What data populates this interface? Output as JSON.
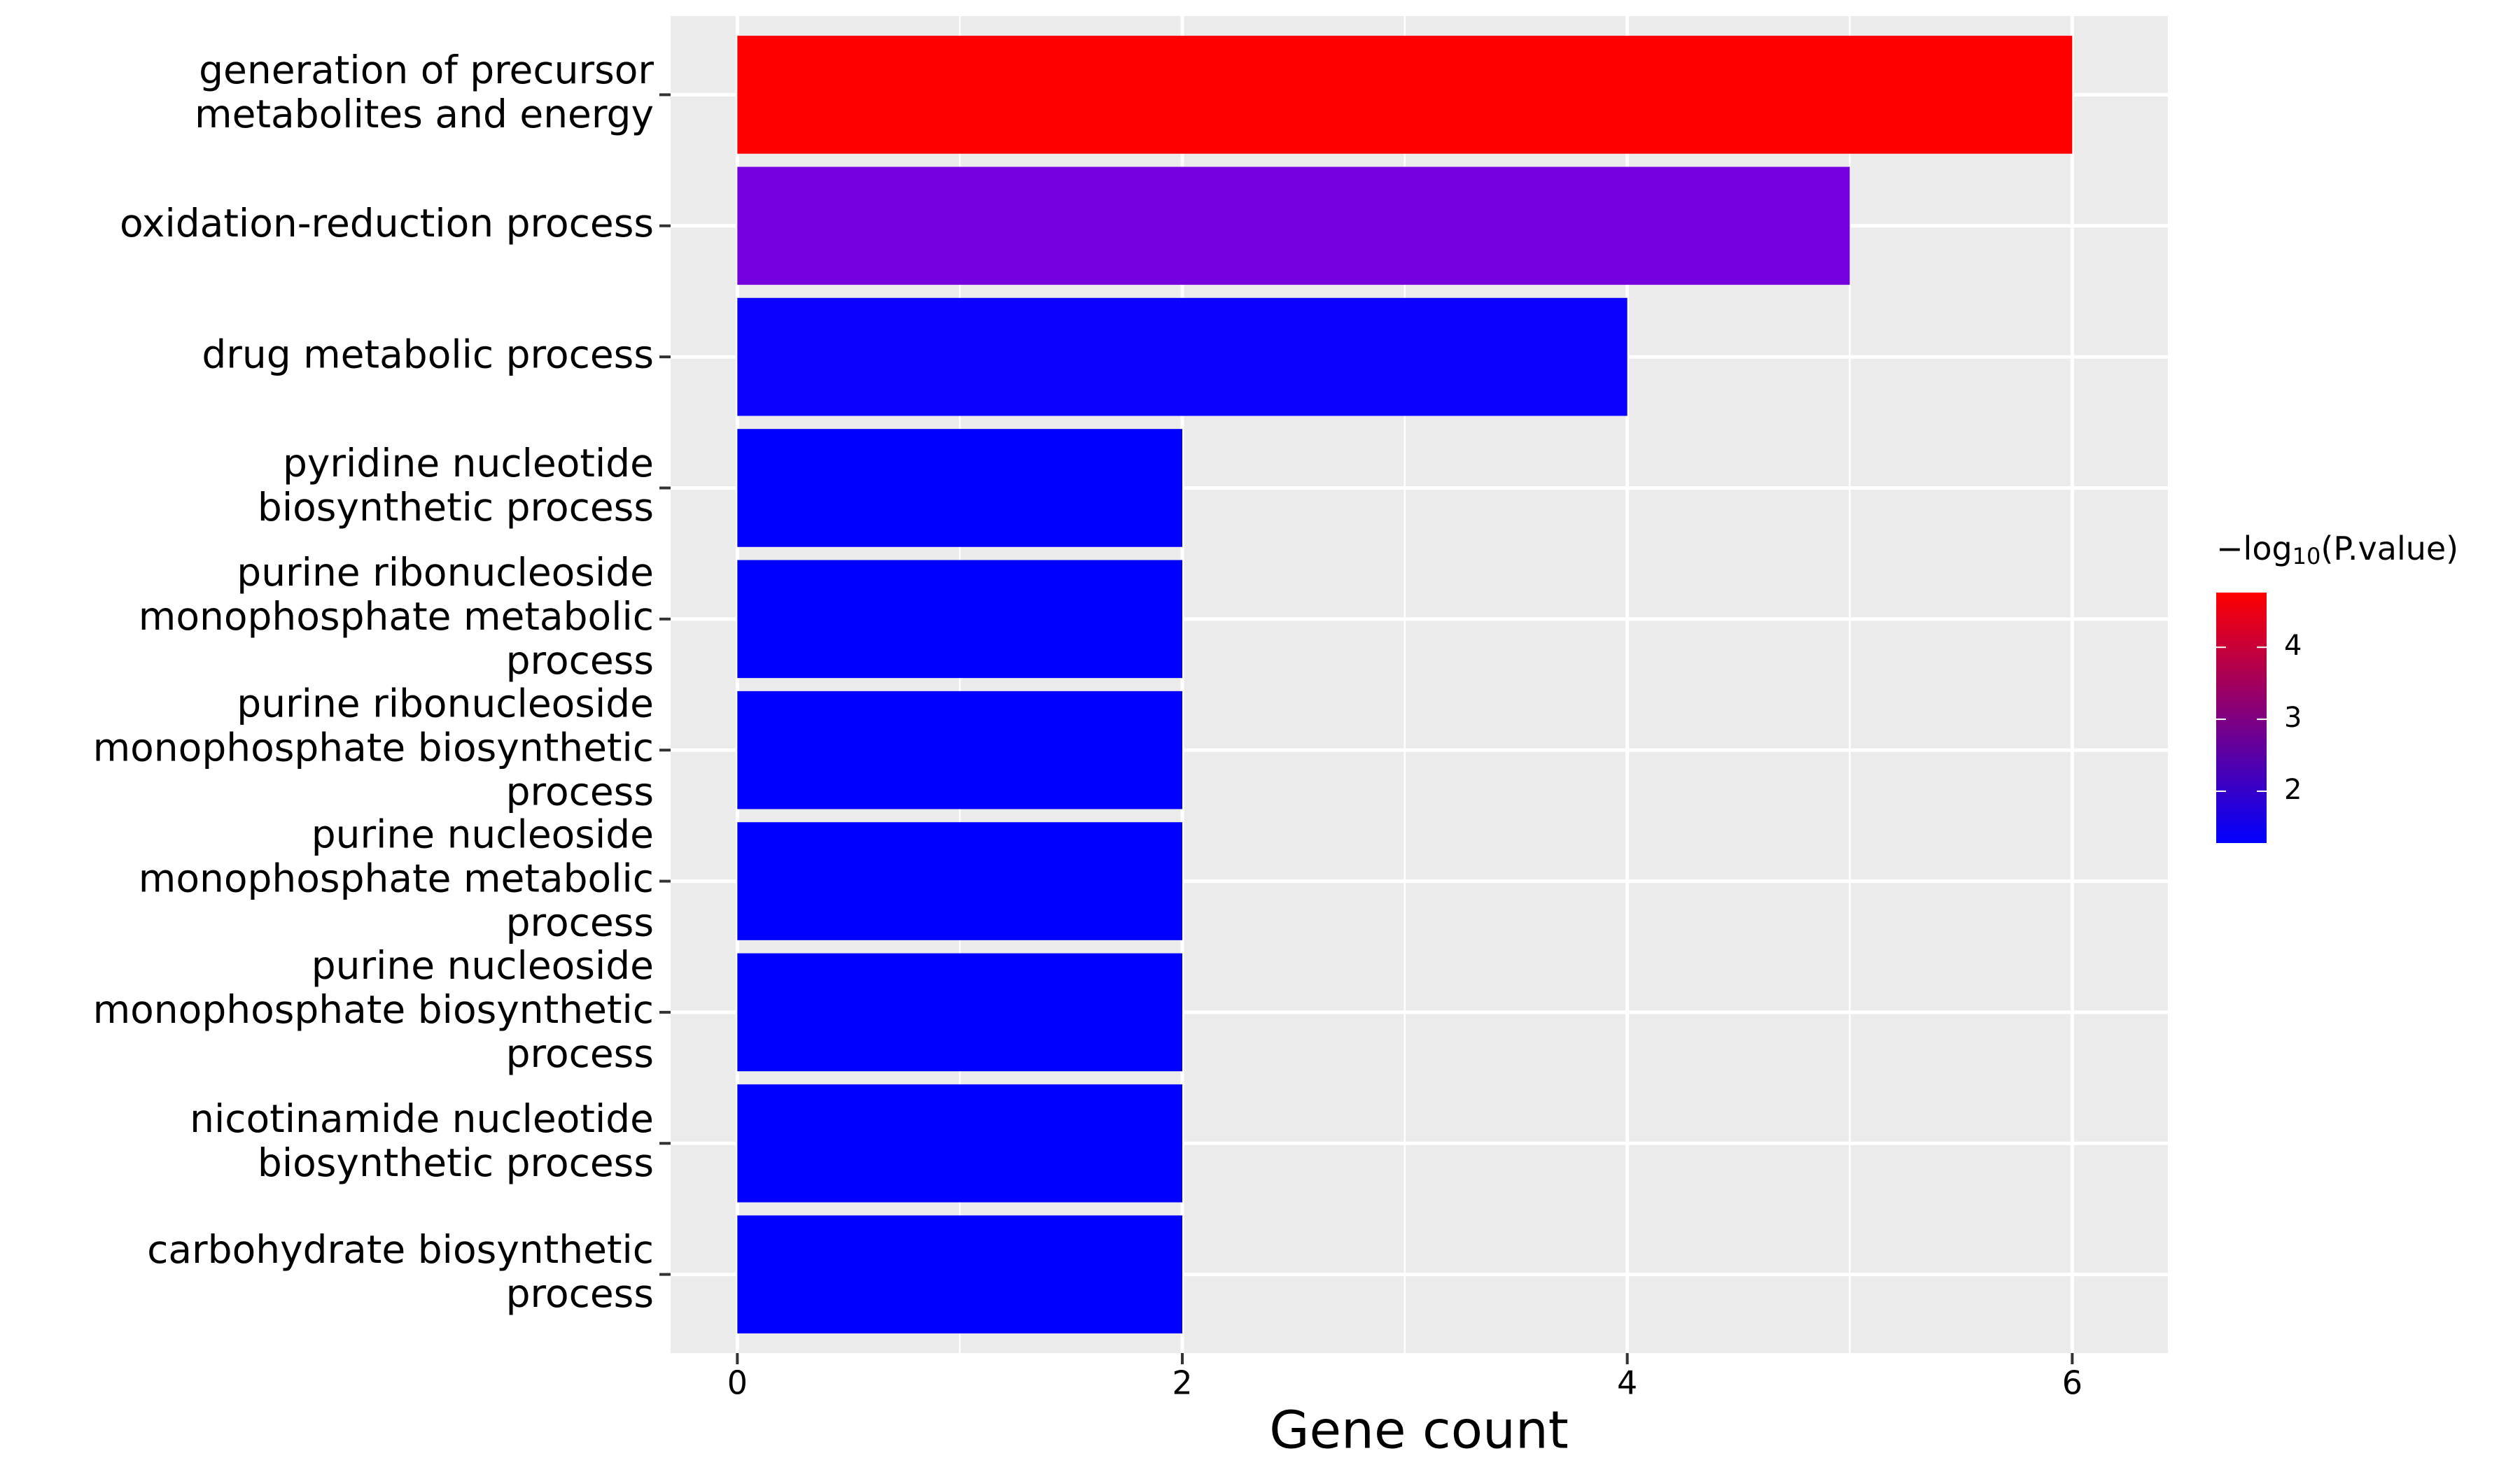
{
  "chart_data": {
    "type": "bar",
    "orientation": "horizontal",
    "categories": [
      [
        "generation of precursor",
        "metabolites and energy"
      ],
      [
        "oxidation-reduction process"
      ],
      [
        "drug metabolic process"
      ],
      [
        "pyridine nucleotide",
        "biosynthetic process"
      ],
      [
        "purine ribonucleoside",
        "monophosphate metabolic",
        "process"
      ],
      [
        "purine ribonucleoside",
        "monophosphate biosynthetic",
        "process"
      ],
      [
        "purine nucleoside",
        "monophosphate metabolic",
        "process"
      ],
      [
        "purine nucleoside",
        "monophosphate biosynthetic",
        "process"
      ],
      [
        "nicotinamide nucleotide",
        "biosynthetic process"
      ],
      [
        "carbohydrate biosynthetic",
        "process"
      ]
    ],
    "values": [
      6,
      5,
      4,
      2,
      2,
      2,
      2,
      2,
      2,
      2
    ],
    "neglog10_pvalue": [
      4.76,
      2.9,
      1.35,
      1.3,
      1.3,
      1.3,
      1.3,
      1.3,
      1.3,
      1.3
    ],
    "colors": [
      "#ff0000",
      "#7700e0",
      "#0c00ff",
      "#0000ff",
      "#0000ff",
      "#0000ff",
      "#0000ff",
      "#0000ff",
      "#0000ff",
      "#0000ff"
    ],
    "x_label": "Gene count",
    "xlim": [
      -0.3,
      6.43
    ],
    "xticks": [
      0,
      2,
      4,
      6
    ],
    "x_minor_grid": [
      1,
      3,
      5
    ],
    "grid": true,
    "legend": {
      "title": {
        "prefix": "−log",
        "subscript": "10",
        "suffix": "(P.value)"
      },
      "low_color": "#0000ff",
      "high_color": "#ff0000",
      "lim": [
        1.28,
        4.76
      ],
      "ticks": [
        2,
        3,
        4
      ],
      "position": "right"
    }
  }
}
